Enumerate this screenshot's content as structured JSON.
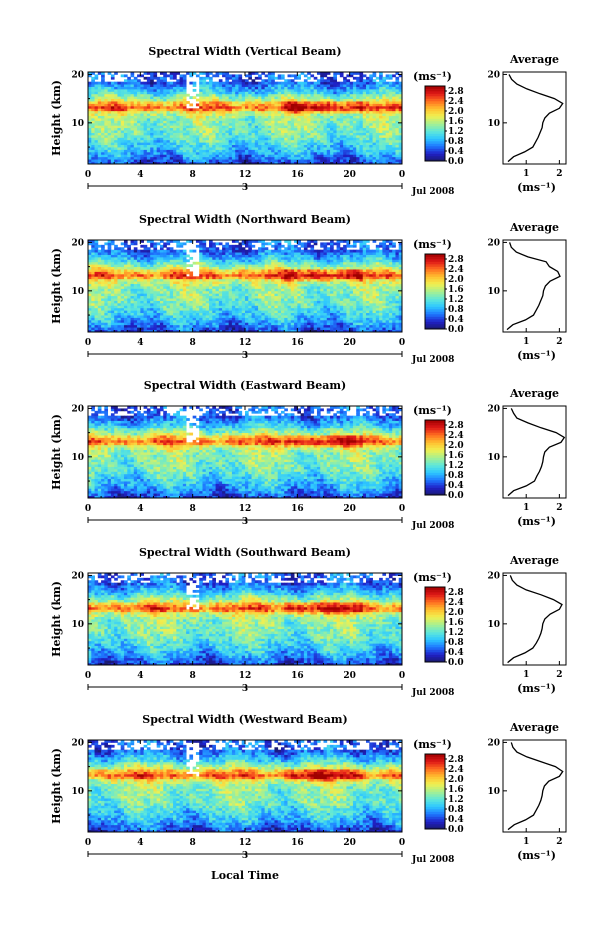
{
  "figure": {
    "xlabel": "Local Time",
    "ylabel": "Height (km)",
    "date_label": "Jul 2008",
    "day_label": "3",
    "unit": "(ms⁻¹)",
    "avg_title": "Average",
    "avg_xlabel": "(ms⁻¹)"
  },
  "colormap": {
    "stops": [
      "#1a1a6e",
      "#2020c8",
      "#1e78ff",
      "#2ec8ff",
      "#60e8d8",
      "#a8f090",
      "#f0f050",
      "#ffc030",
      "#ff7020",
      "#e01818",
      "#a00000"
    ]
  },
  "chart_data": [
    {
      "type": "heatmap",
      "title": "Spectral Width (Vertical Beam)",
      "x_ticks": [
        "0",
        "4",
        "8",
        "12",
        "16",
        "20",
        "0"
      ],
      "xlim": [
        0,
        24
      ],
      "y_ticks": [
        "20",
        "10"
      ],
      "ylim": [
        1.5,
        20.5
      ],
      "colorbar_ticks": [
        "2.8",
        "2.4",
        "2.0",
        "1.6",
        "1.2",
        "0.8",
        "0.4",
        "0.0"
      ],
      "clim": [
        0,
        3.0
      ],
      "average": {
        "title": "Average",
        "x_ticks": [
          "1",
          "2"
        ],
        "xlim": [
          0.3,
          2.2
        ],
        "height": [
          2,
          3,
          4,
          5,
          6,
          7,
          8,
          9,
          10,
          11,
          12,
          13,
          14,
          15,
          16,
          17,
          18,
          19,
          20
        ],
        "width": [
          0.45,
          0.62,
          0.95,
          1.2,
          1.28,
          1.36,
          1.42,
          1.48,
          1.5,
          1.56,
          1.7,
          2.0,
          2.1,
          1.85,
          1.42,
          1.02,
          0.72,
          0.56,
          0.48
        ]
      }
    },
    {
      "type": "heatmap",
      "title": "Spectral Width (Northward Beam)",
      "x_ticks": [
        "0",
        "4",
        "8",
        "12",
        "16",
        "20",
        "0"
      ],
      "xlim": [
        0,
        24
      ],
      "y_ticks": [
        "20",
        "10"
      ],
      "ylim": [
        1.5,
        20.5
      ],
      "colorbar_ticks": [
        "2.8",
        "2.4",
        "2.0",
        "1.6",
        "1.2",
        "0.8",
        "0.4",
        "0.0"
      ],
      "clim": [
        0,
        3.0
      ],
      "average": {
        "title": "Average",
        "x_ticks": [
          "1",
          "2"
        ],
        "xlim": [
          0.3,
          2.2
        ],
        "height": [
          2,
          3,
          4,
          5,
          6,
          7,
          8,
          9,
          10,
          11,
          12,
          13,
          14,
          15,
          16,
          17,
          18,
          19,
          20
        ],
        "width": [
          0.42,
          0.6,
          0.98,
          1.22,
          1.3,
          1.38,
          1.44,
          1.5,
          1.52,
          1.58,
          1.72,
          2.02,
          1.95,
          1.7,
          1.6,
          1.05,
          0.7,
          0.55,
          0.5
        ]
      }
    },
    {
      "type": "heatmap",
      "title": "Spectral Width (Eastward Beam)",
      "x_ticks": [
        "0",
        "4",
        "8",
        "12",
        "16",
        "20",
        "0"
      ],
      "xlim": [
        0,
        24
      ],
      "y_ticks": [
        "20",
        "10"
      ],
      "ylim": [
        1.5,
        20.5
      ],
      "colorbar_ticks": [
        "2.8",
        "2.4",
        "2.0",
        "1.6",
        "1.2",
        "0.8",
        "0.4",
        "0.0"
      ],
      "clim": [
        0,
        3.0
      ],
      "average": {
        "title": "Average",
        "x_ticks": [
          "1",
          "2"
        ],
        "xlim": [
          0.3,
          2.2
        ],
        "height": [
          2,
          3,
          4,
          5,
          6,
          7,
          8,
          9,
          10,
          11,
          12,
          13,
          14,
          15,
          16,
          17,
          18,
          19,
          20
        ],
        "width": [
          0.45,
          0.62,
          1.0,
          1.25,
          1.32,
          1.4,
          1.46,
          1.5,
          1.52,
          1.56,
          1.7,
          2.05,
          2.15,
          1.9,
          1.45,
          1.05,
          0.72,
          0.62,
          0.55
        ]
      }
    },
    {
      "type": "heatmap",
      "title": "Spectral Width (Southward Beam)",
      "x_ticks": [
        "0",
        "4",
        "8",
        "12",
        "16",
        "20",
        "0"
      ],
      "xlim": [
        0,
        24
      ],
      "y_ticks": [
        "20",
        "10"
      ],
      "ylim": [
        1.5,
        20.5
      ],
      "colorbar_ticks": [
        "2.8",
        "2.4",
        "2.0",
        "1.6",
        "1.2",
        "0.8",
        "0.4",
        "0.0"
      ],
      "clim": [
        0,
        3.0
      ],
      "average": {
        "title": "Average",
        "x_ticks": [
          "1",
          "2"
        ],
        "xlim": [
          0.3,
          2.2
        ],
        "height": [
          2,
          3,
          4,
          5,
          6,
          7,
          8,
          9,
          10,
          11,
          12,
          13,
          14,
          15,
          16,
          17,
          18,
          19,
          20
        ],
        "width": [
          0.44,
          0.62,
          0.96,
          1.2,
          1.3,
          1.38,
          1.44,
          1.48,
          1.5,
          1.56,
          1.72,
          2.0,
          2.08,
          1.82,
          1.45,
          1.0,
          0.72,
          0.58,
          0.52
        ]
      }
    },
    {
      "type": "heatmap",
      "title": "Spectral Width (Westward Beam)",
      "x_ticks": [
        "0",
        "4",
        "8",
        "12",
        "16",
        "20",
        "0"
      ],
      "xlim": [
        0,
        24
      ],
      "y_ticks": [
        "20",
        "10"
      ],
      "ylim": [
        1.5,
        20.5
      ],
      "colorbar_ticks": [
        "2.8",
        "2.4",
        "2.0",
        "1.6",
        "1.2",
        "0.8",
        "0.4",
        "0.0"
      ],
      "clim": [
        0,
        3.0
      ],
      "average": {
        "title": "Average",
        "x_ticks": [
          "1",
          "2"
        ],
        "xlim": [
          0.3,
          2.2
        ],
        "height": [
          2,
          3,
          4,
          5,
          6,
          7,
          8,
          9,
          10,
          11,
          12,
          13,
          14,
          15,
          16,
          17,
          18,
          19,
          20
        ],
        "width": [
          0.45,
          0.64,
          0.98,
          1.22,
          1.3,
          1.38,
          1.44,
          1.48,
          1.5,
          1.55,
          1.68,
          2.0,
          2.1,
          1.88,
          1.45,
          1.02,
          0.72,
          0.6,
          0.55
        ]
      }
    }
  ]
}
